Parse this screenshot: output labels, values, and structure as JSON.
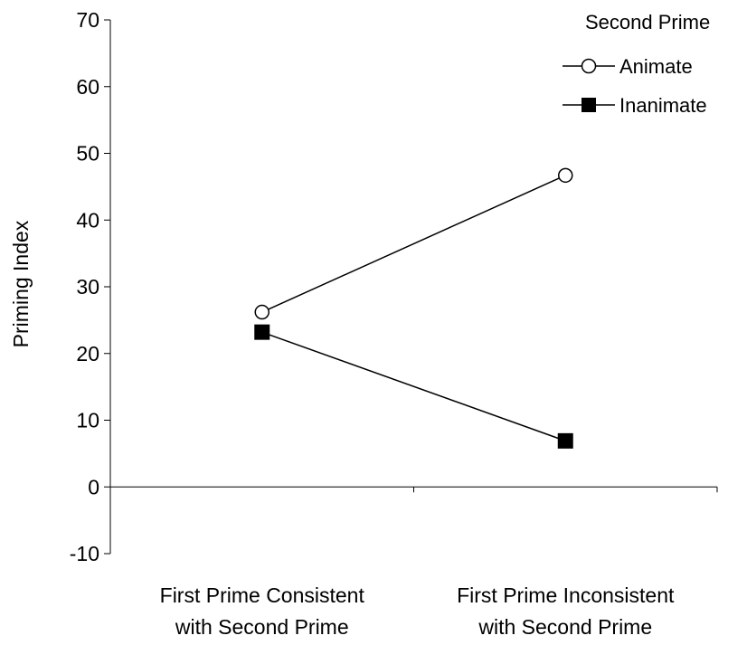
{
  "chart_data": {
    "type": "line",
    "title": "",
    "xlabel": "",
    "ylabel": "Priming Index",
    "ylim": [
      -10,
      70
    ],
    "yticks": [
      -10,
      0,
      10,
      20,
      30,
      40,
      50,
      60,
      70
    ],
    "categories": [
      [
        "First Prime Consistent",
        "with Second Prime"
      ],
      [
        "First Prime Inconsistent",
        "with Second Prime"
      ]
    ],
    "legend_title": "Second Prime",
    "legend_position": "top-right",
    "grid": false,
    "series": [
      {
        "name": "Animate",
        "marker": "open-circle",
        "values": [
          26.2,
          46.7
        ],
        "color": "#000000"
      },
      {
        "name": "Inanimate",
        "marker": "filled-square",
        "values": [
          23.2,
          6.9
        ],
        "color": "#000000"
      }
    ]
  }
}
